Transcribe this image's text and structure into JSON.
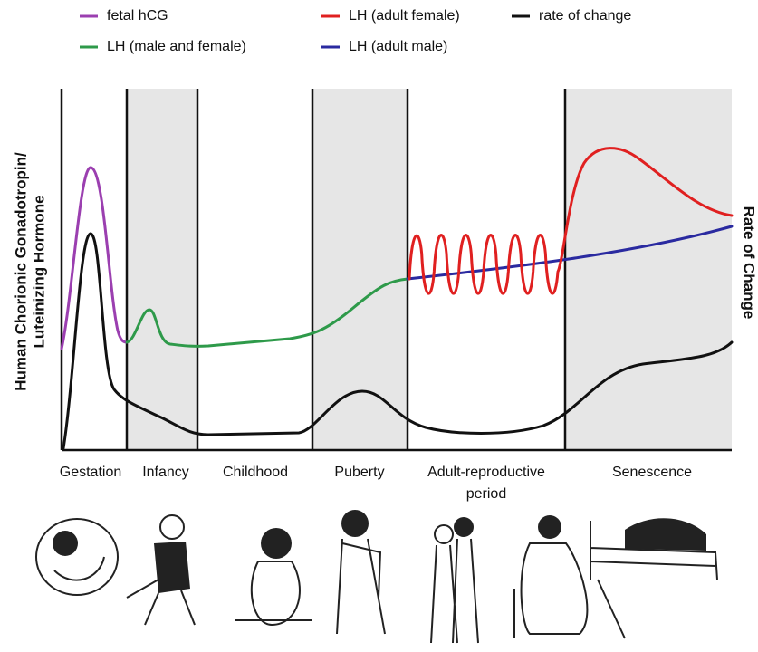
{
  "legend": [
    "fetal hCG",
    "LH (adult female)",
    "rate of change",
    "LH (male and female)",
    "LH (adult male)"
  ],
  "y_axis_label": [
    "Human Chorionic Gonadotropin/",
    "Luteinizing Hormone"
  ],
  "y2_axis_label": "Rate of Change",
  "phases": [
    [
      "Gestation"
    ],
    [
      "Infancy"
    ],
    [
      "Childhood"
    ],
    [
      "Puberty"
    ],
    [
      "Adult-reproductive",
      "period"
    ],
    [
      "Senescence"
    ]
  ]
}
